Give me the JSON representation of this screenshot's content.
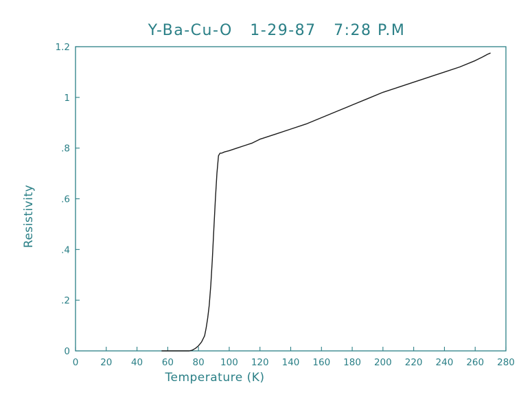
{
  "colors": {
    "text": "#2a7f86",
    "axis": "#2a7f86",
    "line": "#1a1a1a"
  },
  "chart_data": {
    "type": "line",
    "title": "Y-Ba-Cu-O   1-29-87   7:28 P.M",
    "xlabel": "Temperature (K)",
    "ylabel": "Resistivity",
    "xlim": [
      0,
      280
    ],
    "ylim": [
      0,
      1.2
    ],
    "x_ticks": [
      0,
      20,
      40,
      60,
      80,
      100,
      120,
      140,
      160,
      180,
      200,
      220,
      240,
      260,
      280
    ],
    "x_tick_labels": [
      "0",
      "20",
      "40",
      "60",
      "80",
      "100",
      "120",
      "140",
      "160",
      "180",
      "200",
      "220",
      "240",
      "260",
      "280"
    ],
    "y_ticks": [
      0,
      0.2,
      0.4,
      0.6,
      0.8,
      1.0,
      1.2
    ],
    "y_tick_labels": [
      "0",
      ".2",
      ".4",
      ".6",
      ".8",
      "1",
      "1.2"
    ],
    "grid": false,
    "legend": "none",
    "series": [
      {
        "x": [
          56,
          60,
          65,
          70,
          74,
          76,
          78,
          80,
          82,
          84,
          85,
          86,
          87,
          88,
          89,
          90,
          91,
          92,
          93,
          94,
          95,
          97,
          100,
          105,
          110,
          115,
          120,
          125,
          130,
          140,
          150,
          160,
          170,
          180,
          190,
          200,
          210,
          220,
          230,
          240,
          250,
          260,
          265,
          268,
          270
        ],
        "y": [
          0,
          0,
          0,
          0,
          0,
          0.003,
          0.01,
          0.02,
          0.035,
          0.06,
          0.09,
          0.13,
          0.18,
          0.26,
          0.36,
          0.48,
          0.6,
          0.7,
          0.77,
          0.78,
          0.78,
          0.785,
          0.79,
          0.8,
          0.81,
          0.82,
          0.835,
          0.845,
          0.855,
          0.875,
          0.895,
          0.92,
          0.945,
          0.97,
          0.995,
          1.02,
          1.04,
          1.06,
          1.08,
          1.1,
          1.12,
          1.145,
          1.16,
          1.17,
          1.175
        ]
      }
    ]
  }
}
